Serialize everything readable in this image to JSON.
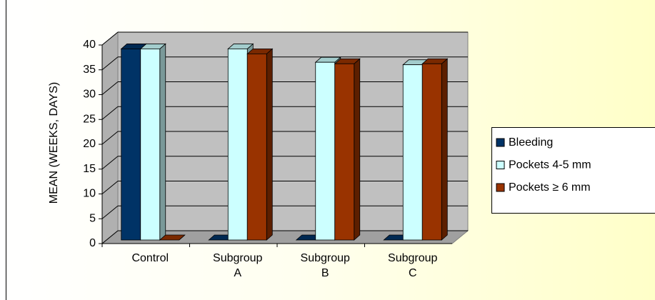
{
  "chart_data": {
    "type": "bar3d",
    "y_axis_label": "MEAN (WEEKS, DAYS)",
    "categories": [
      "Control",
      "Subgroup A",
      "Subgroup B",
      "Subgroup C"
    ],
    "series": [
      {
        "name": "Bleeding",
        "color": "#003366",
        "values": [
          38.5,
          0,
          0,
          0
        ]
      },
      {
        "name": "Pockets 4-5 mm",
        "color": "#ccffff",
        "values": [
          38.5,
          38.5,
          35.8,
          35.3
        ]
      },
      {
        "name": "Pockets ≥ 6 mm",
        "color": "#993300",
        "values": [
          0,
          37.5,
          35.5,
          35.5
        ]
      }
    ],
    "ylim": [
      0,
      40
    ],
    "yticks": [
      0,
      5,
      10,
      15,
      20,
      25,
      30,
      35,
      40
    ],
    "grid": true
  }
}
